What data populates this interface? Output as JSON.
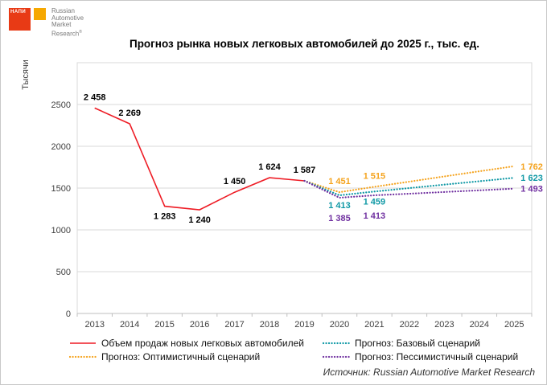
{
  "logo": {
    "napi": "НАПИ",
    "brand_lines": [
      "Russian",
      "Automotive",
      "Market",
      "Research"
    ],
    "registered": "®",
    "red_square_color": "#e83a15",
    "yellow_square_color": "#f6a800"
  },
  "source": "Источник: Russian Automotive Market Research",
  "chart_data": {
    "type": "line",
    "title": "Прогноз рынка новых легковых автомобилей до 2025 г., тыс. ед.",
    "xlabel": "",
    "ylabel": "Тысячи",
    "x": [
      2013,
      2014,
      2015,
      2016,
      2017,
      2018,
      2019,
      2020,
      2021,
      2022,
      2023,
      2024,
      2025
    ],
    "ylim": [
      0,
      3000
    ],
    "yticks": [
      0,
      500,
      1000,
      1500,
      2000,
      2500
    ],
    "grid": true,
    "legend_position": "bottom",
    "legend_order": [
      0,
      2,
      1,
      3
    ],
    "series": [
      {
        "name": "Объем продаж новых легковых автомобилей",
        "color": "#ee1c25",
        "label_color": "#000000",
        "style": "solid",
        "values": [
          2458,
          2269,
          1283,
          1240,
          1450,
          1624,
          1587,
          null,
          null,
          null,
          null,
          null,
          null
        ],
        "labels": [
          "2 458",
          "2 269",
          "1 283",
          "1 240",
          "1 450",
          "1 624",
          "1 587",
          null,
          null,
          null,
          null,
          null,
          null
        ],
        "label_pos": [
          "above",
          "above",
          "below",
          "below",
          "above",
          "above",
          "above",
          null,
          null,
          null,
          null,
          null,
          null
        ]
      },
      {
        "name": "Прогноз: Оптимистичный сценарий",
        "color": "#f5a31d",
        "style": "dotted",
        "values": [
          null,
          null,
          null,
          null,
          null,
          null,
          1587,
          1451,
          1515,
          1577,
          1639,
          1701,
          1762
        ],
        "labels": [
          null,
          null,
          null,
          null,
          null,
          null,
          null,
          "1 451",
          "1 515",
          null,
          null,
          null,
          "1 762"
        ],
        "label_pos": [
          null,
          null,
          null,
          null,
          null,
          null,
          null,
          "above",
          "above",
          null,
          null,
          null,
          "right"
        ]
      },
      {
        "name": "Прогноз: Базовый сценарий",
        "color": "#0e98a5",
        "style": "dotted",
        "values": [
          null,
          null,
          null,
          null,
          null,
          null,
          1587,
          1413,
          1459,
          1500,
          1541,
          1582,
          1623
        ],
        "labels": [
          null,
          null,
          null,
          null,
          null,
          null,
          null,
          "1 413",
          "1 459",
          null,
          null,
          null,
          "1 623"
        ],
        "label_pos": [
          null,
          null,
          null,
          null,
          null,
          null,
          null,
          "below",
          "below",
          null,
          null,
          null,
          "right"
        ]
      },
      {
        "name": "Прогноз: Пессимистичный сценарий",
        "color": "#7030a0",
        "style": "dotted",
        "values": [
          null,
          null,
          null,
          null,
          null,
          null,
          1587,
          1385,
          1413,
          1433,
          1453,
          1473,
          1493
        ],
        "labels": [
          null,
          null,
          null,
          null,
          null,
          null,
          null,
          "1 385",
          "1 413",
          null,
          null,
          null,
          "1 493"
        ],
        "label_pos": [
          null,
          null,
          null,
          null,
          null,
          null,
          null,
          "belowfar",
          "belowfar",
          null,
          null,
          null,
          "right"
        ]
      }
    ]
  }
}
